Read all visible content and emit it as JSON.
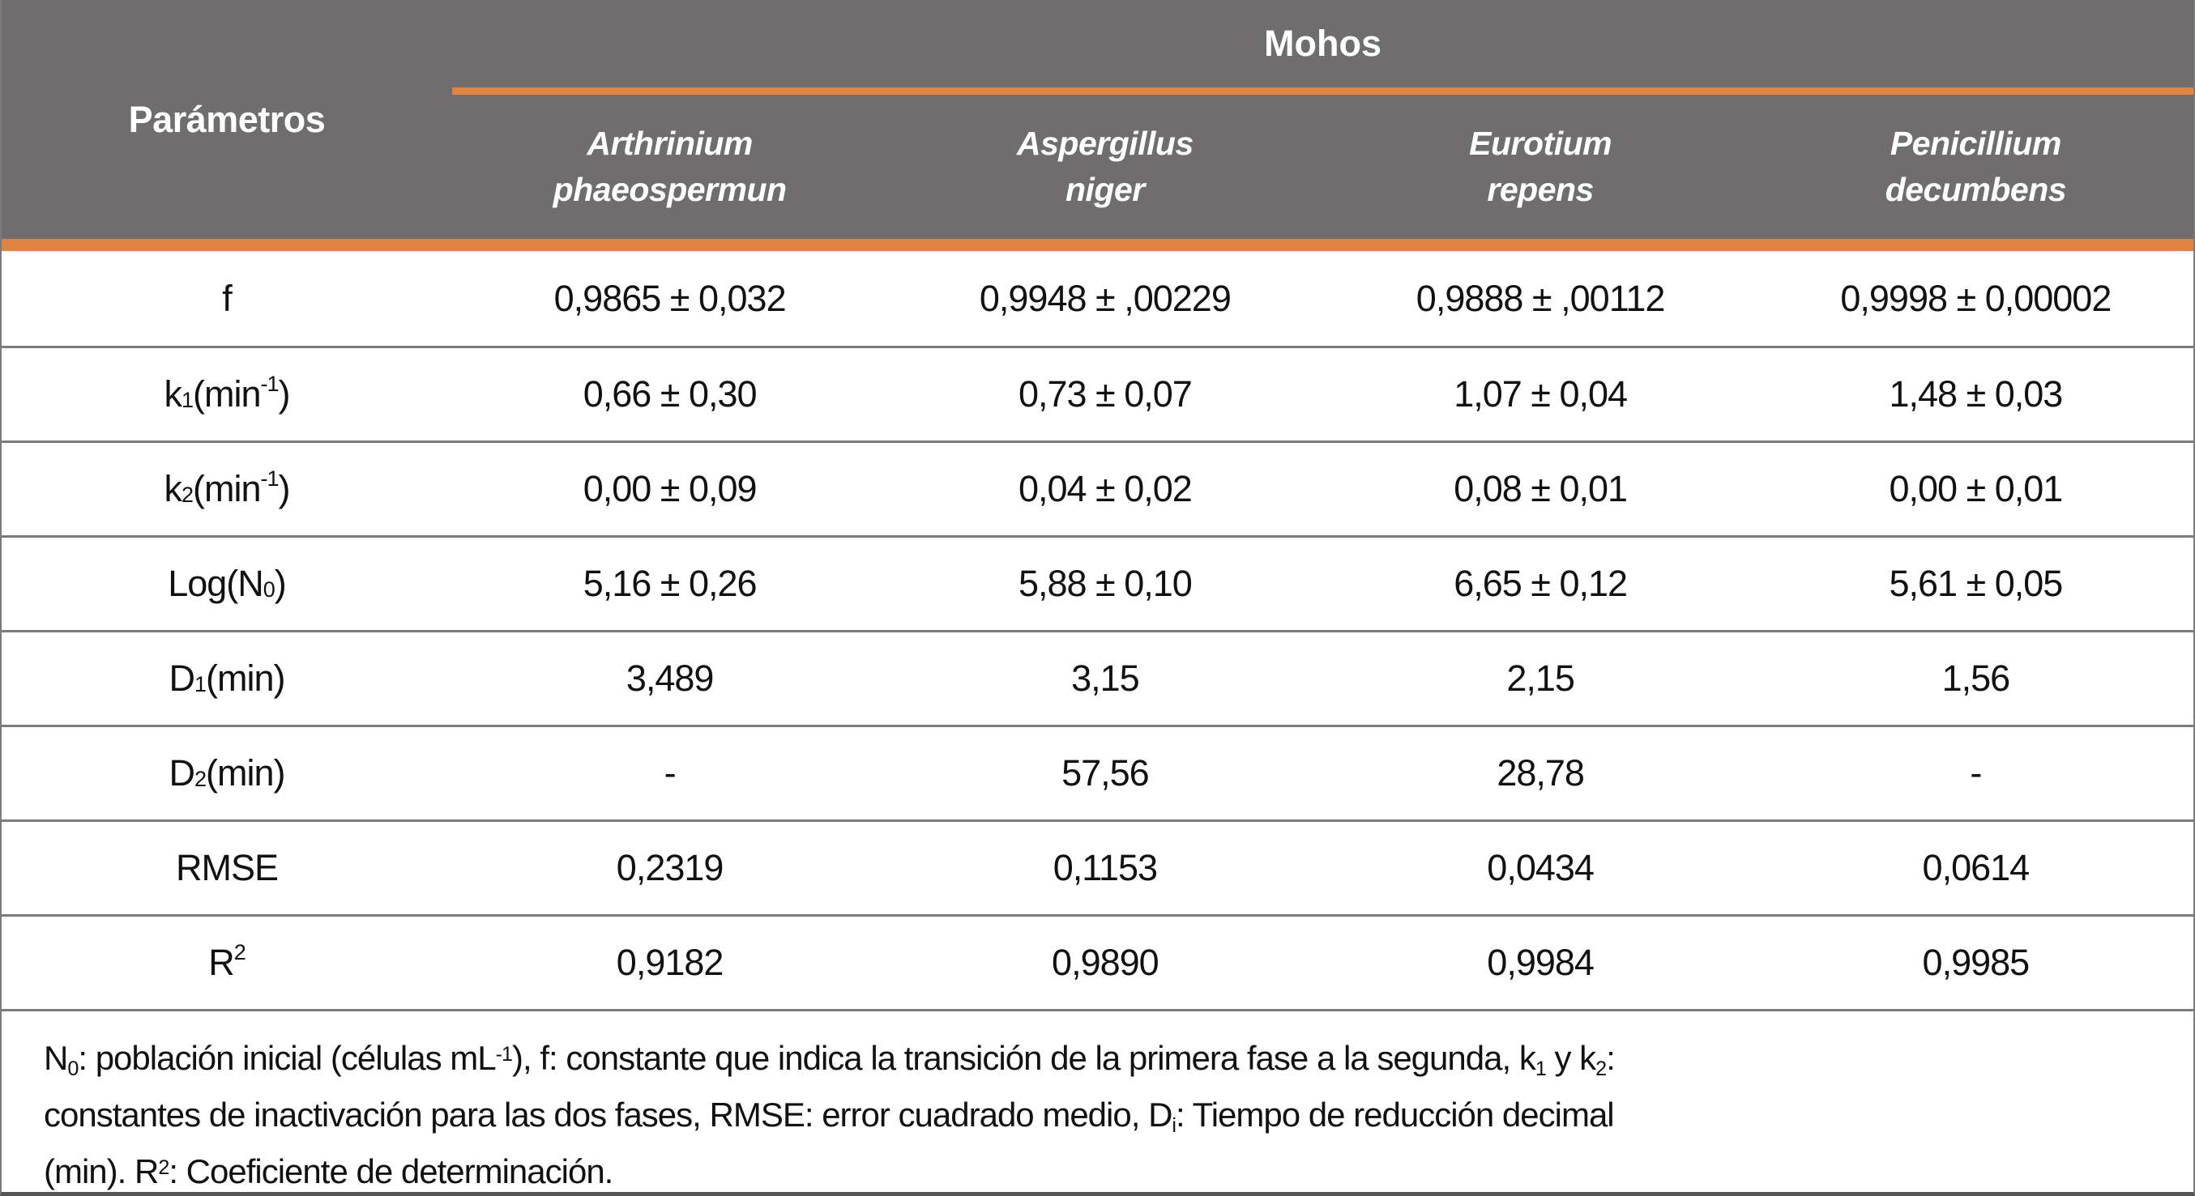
{
  "colors": {
    "header_bg": "#6F6D6D",
    "accent_orange": "#E08440",
    "row_border": "#7C7A7A",
    "header_text": "#FFFFFF",
    "body_text": "#111111"
  },
  "table": {
    "param_header": "Parámetros",
    "group_header": "Mohos",
    "species_columns": [
      {
        "line1": "Arthrinium",
        "line2": "phaeospermun"
      },
      {
        "line1": "Aspergillus",
        "line2": "niger"
      },
      {
        "line1": "Eurotium",
        "line2": "repens"
      },
      {
        "line1": "Penicillium",
        "line2": "decumbens"
      }
    ],
    "rows": [
      {
        "label_html": "f",
        "values": [
          "0,9865 ± 0,032",
          "0,9948 ± ,00229",
          "0,9888 ± ,00112",
          "0,9998 ± 0,00002"
        ]
      },
      {
        "label_html": "k<sub>1</sub>(min<sup>-1</sup>)",
        "values": [
          "0,66 ± 0,30",
          "0,73 ± 0,07",
          "1,07 ± 0,04",
          "1,48 ± 0,03"
        ]
      },
      {
        "label_html": "k<sub>2</sub>(min<sup>-1</sup>)",
        "values": [
          "0,00 ± 0,09",
          "0,04 ± 0,02",
          "0,08 ± 0,01",
          "0,00 ± 0,01"
        ]
      },
      {
        "label_html": "Log(N<sub>0</sub>)",
        "values": [
          "5,16 ± 0,26",
          "5,88 ± 0,10",
          "6,65 ± 0,12",
          "5,61 ± 0,05"
        ]
      },
      {
        "label_html": "D<sub>1</sub> (min)",
        "values": [
          "3,489",
          "3,15",
          "2,15",
          "1,56"
        ]
      },
      {
        "label_html": "D<sub>2</sub> (min)",
        "values": [
          "-",
          "57,56",
          "28,78",
          "-"
        ]
      },
      {
        "label_html": "RMSE",
        "values": [
          "0,2319",
          "0,1153",
          "0,0434",
          "0,0614"
        ]
      },
      {
        "label_html": "R<sup>2</sup>",
        "values": [
          "0,9182",
          "0,9890",
          "0,9984",
          "0,9985"
        ]
      }
    ],
    "footnote_lines_html": [
      "N<sub>0</sub>: población inicial (células mL<sup>-1</sup>), f: constante que indica la transición de la primera fase a la segunda, k<sub>1</sub> y k<sub>2</sub>:",
      "constantes de inactivación para las dos fases, RMSE: error cuadrado medio, D<sub>i</sub>: Tiempo de reducción decimal",
      "(min). R<sup>2</sup>: Coeficiente de determinación."
    ]
  }
}
